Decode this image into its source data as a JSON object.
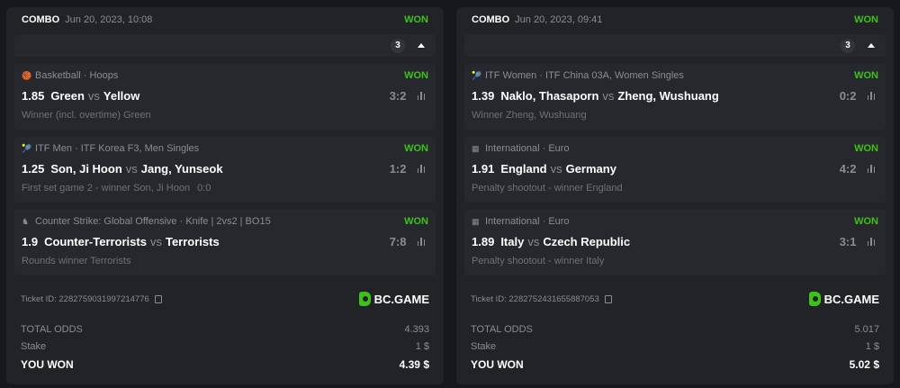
{
  "tickets": [
    {
      "type": "COMBO",
      "date": "Jun 20, 2023, 10:08",
      "status": "WON",
      "count": "3",
      "bets": [
        {
          "icon": "basketball-icon",
          "category": "Basketball · Hoops",
          "status": "WON",
          "odds": "1.85",
          "home": "Green",
          "vs": "vs",
          "away": "Yellow",
          "score": "3:2",
          "market": "Winner (incl. overtime) Green",
          "extra": ""
        },
        {
          "icon": "tennis-icon",
          "category": "ITF Men · ITF Korea F3, Men Singles",
          "status": "WON",
          "odds": "1.25",
          "home": "Son, Ji Hoon",
          "vs": "vs",
          "away": "Jang, Yunseok",
          "score": "1:2",
          "market": "First set game 2 - winner Son, Ji Hoon",
          "extra": "0:0"
        },
        {
          "icon": "counter-strike-icon",
          "category": "Counter Strike: Global Offensive · Knife | 2vs2 | BO15",
          "status": "WON",
          "odds": "1.9",
          "home": "Counter-Terrorists",
          "vs": "vs",
          "away": "Terrorists",
          "score": "7:8",
          "market": "Rounds winner Terrorists",
          "extra": ""
        }
      ],
      "ticket_id": "Ticket ID: 2282759031997214776",
      "brand": "BC.GAME",
      "total_odds_label": "TOTAL ODDS",
      "total_odds": "4.393",
      "stake_label": "Stake",
      "stake": "1 $",
      "won_label": "YOU WON",
      "won": "4.39 $"
    },
    {
      "type": "COMBO",
      "date": "Jun 20, 2023, 09:41",
      "status": "WON",
      "count": "3",
      "bets": [
        {
          "icon": "tennis-icon",
          "category": "ITF Women · ITF China 03A, Women Singles",
          "status": "WON",
          "odds": "1.39",
          "home": "Naklo, Thasaporn",
          "vs": "vs",
          "away": "Zheng, Wushuang",
          "score": "0:2",
          "market": "Winner Zheng, Wushuang",
          "extra": ""
        },
        {
          "icon": "fifa-icon",
          "category": "International · Euro",
          "status": "WON",
          "odds": "1.91",
          "home": "England",
          "vs": "vs",
          "away": "Germany",
          "score": "4:2",
          "market": "Penalty shootout - winner England",
          "extra": ""
        },
        {
          "icon": "fifa-icon",
          "category": "International · Euro",
          "status": "WON",
          "odds": "1.89",
          "home": "Italy",
          "vs": "vs",
          "away": "Czech Republic",
          "score": "3:1",
          "market": "Penalty shootout - winner Italy",
          "extra": ""
        }
      ],
      "ticket_id": "Ticket ID: 2282752431655887053",
      "brand": "BC.GAME",
      "total_odds_label": "TOTAL ODDS",
      "total_odds": "5.017",
      "stake_label": "Stake",
      "stake": "1 $",
      "won_label": "YOU WON",
      "won": "5.02 $"
    }
  ],
  "colors": {
    "won": "#3dc219",
    "background": "#17181b",
    "card": "#222327"
  }
}
